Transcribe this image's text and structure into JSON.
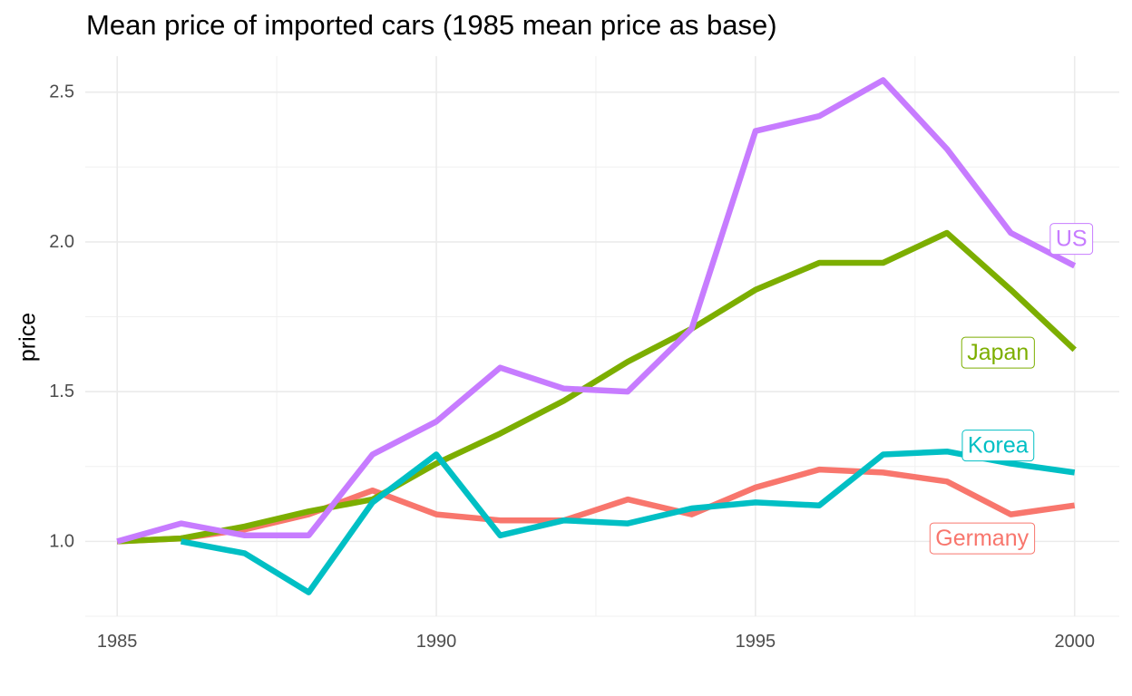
{
  "chart_data": {
    "type": "line",
    "title": "Mean price of imported cars (1985 mean price as base)",
    "xlabel": "",
    "ylabel": "price",
    "xlim": [
      1984.5,
      2000.7
    ],
    "ylim": [
      0.75,
      2.62
    ],
    "x_ticks": [
      1985,
      1990,
      1995,
      2000
    ],
    "x_tick_labels": [
      "1985",
      "1990",
      "1995",
      "2000"
    ],
    "y_ticks": [
      1.0,
      1.5,
      2.0,
      2.5
    ],
    "y_tick_labels": [
      "1.0",
      "1.5",
      "2.0",
      "2.5"
    ],
    "grid": true,
    "legend": "none (direct labels at line ends)",
    "series": [
      {
        "name": "Germany",
        "color": "#F8766D",
        "x": [
          1985,
          1986,
          1987,
          1988,
          1989,
          1990,
          1991,
          1992,
          1993,
          1994,
          1995,
          1996,
          1997,
          1998,
          1999,
          2000
        ],
        "y": [
          1.0,
          1.01,
          1.04,
          1.09,
          1.17,
          1.09,
          1.07,
          1.07,
          1.14,
          1.09,
          1.18,
          1.24,
          1.23,
          1.2,
          1.09,
          1.12
        ]
      },
      {
        "name": "Japan",
        "color": "#7CAE00",
        "x": [
          1985,
          1986,
          1987,
          1988,
          1989,
          1990,
          1991,
          1992,
          1993,
          1994,
          1995,
          1996,
          1997,
          1998,
          1999,
          2000
        ],
        "y": [
          1.0,
          1.01,
          1.05,
          1.1,
          1.14,
          1.26,
          1.36,
          1.47,
          1.6,
          1.71,
          1.84,
          1.93,
          1.93,
          2.03,
          1.84,
          1.64
        ]
      },
      {
        "name": "Korea",
        "color": "#00BFC4",
        "x": [
          1986,
          1987,
          1988,
          1989,
          1990,
          1991,
          1992,
          1993,
          1994,
          1995,
          1996,
          1997,
          1998,
          1999,
          2000
        ],
        "y": [
          1.0,
          0.96,
          0.83,
          1.13,
          1.29,
          1.02,
          1.07,
          1.06,
          1.11,
          1.13,
          1.12,
          1.29,
          1.3,
          1.26,
          1.23
        ]
      },
      {
        "name": "US",
        "color": "#C77CFF",
        "x": [
          1985,
          1986,
          1987,
          1988,
          1989,
          1990,
          1991,
          1992,
          1993,
          1994,
          1995,
          1996,
          1997,
          1998,
          1999,
          2000
        ],
        "y": [
          1.0,
          1.06,
          1.02,
          1.02,
          1.29,
          1.4,
          1.58,
          1.51,
          1.5,
          1.71,
          2.37,
          2.42,
          2.54,
          2.31,
          2.03,
          1.92
        ]
      }
    ],
    "labels": [
      {
        "text": "US",
        "series": "US",
        "x": 1999.95,
        "y": 2.01
      },
      {
        "text": "Japan",
        "series": "Japan",
        "x": 1998.8,
        "y": 1.63
      },
      {
        "text": "Korea",
        "series": "Korea",
        "x": 1998.8,
        "y": 1.32
      },
      {
        "text": "Germany",
        "series": "Germany",
        "x": 1998.55,
        "y": 1.01
      }
    ]
  }
}
